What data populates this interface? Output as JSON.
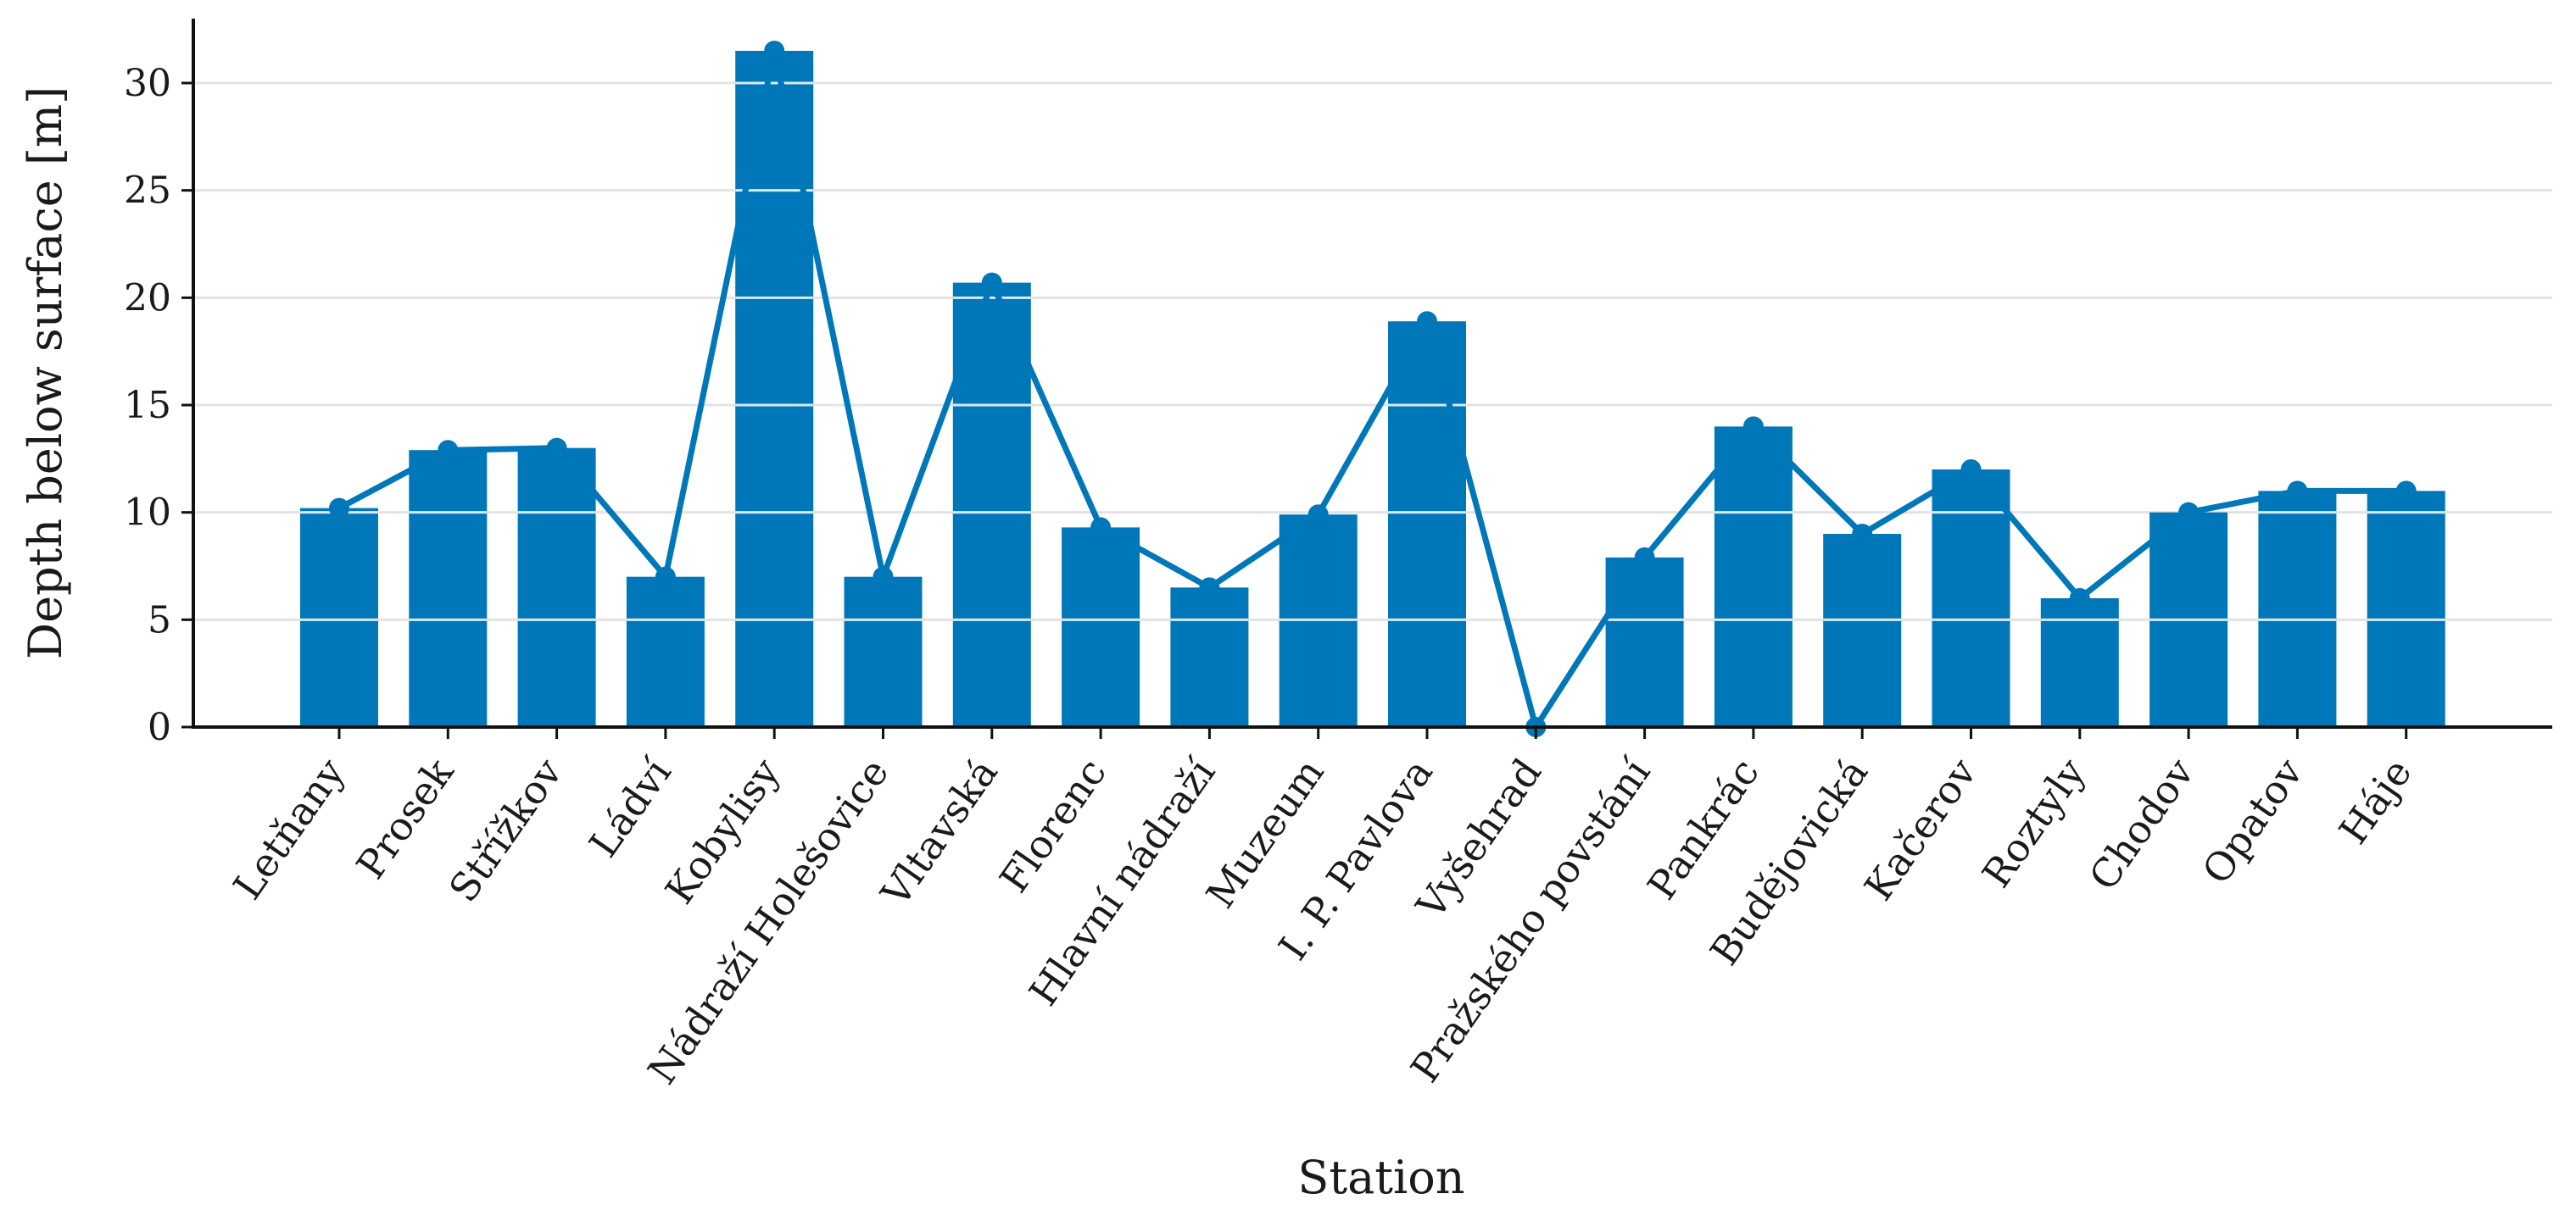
{
  "chart_data": {
    "type": "bar",
    "categories": [
      "Letňany",
      "Prosek",
      "Střížkov",
      "Ládví",
      "Kobylisy",
      "Nádraží Holešovice",
      "Vltavská",
      "Florenc",
      "Hlavní nádraží",
      "Muzeum",
      "I. P. Pavlova",
      "Vyšehrad",
      "Pražského povstání",
      "Pankrác",
      "Budějovická",
      "Kačerov",
      "Roztyly",
      "Chodov",
      "Opatov",
      "Háje"
    ],
    "series": [
      {
        "type": "bar",
        "values": [
          10.2,
          12.9,
          13.0,
          7.0,
          31.5,
          7.0,
          20.7,
          9.3,
          6.5,
          9.9,
          18.9,
          0,
          7.9,
          14.0,
          9.0,
          12.0,
          6.0,
          10.0,
          11.0,
          11.0
        ]
      },
      {
        "type": "line",
        "values": [
          10.2,
          12.9,
          13.0,
          7.0,
          31.5,
          7.0,
          20.7,
          9.3,
          6.5,
          9.9,
          18.9,
          0,
          7.9,
          14.0,
          9.0,
          12.0,
          6.0,
          10.0,
          11.0,
          11.0
        ]
      }
    ],
    "xlabel": "Station",
    "ylabel": "Depth below surface [m]",
    "ylim": [
      0,
      33
    ],
    "yticks": [
      0,
      5,
      10,
      15,
      20,
      25,
      30
    ],
    "grid": "horizontal",
    "color": "#0077b8"
  }
}
